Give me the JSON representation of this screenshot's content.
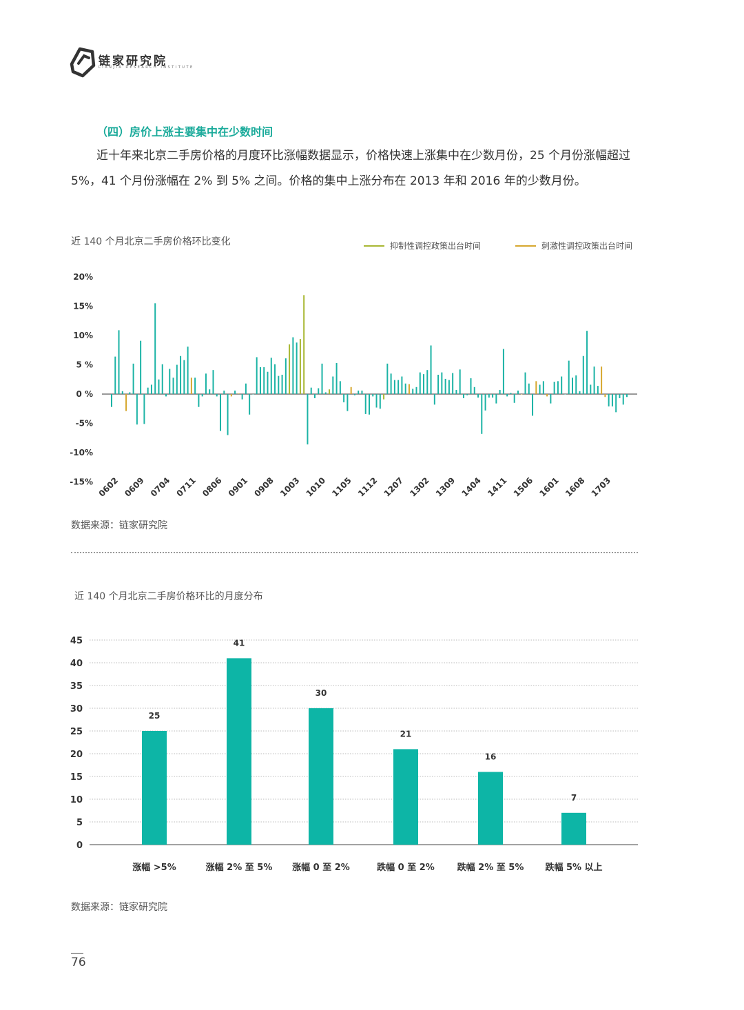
{
  "brand": {
    "name": "链家研究院",
    "subtitle": "LIANJIA RESEARCH INSTITUTE",
    "logo_icon": "lianjia-logo-icon"
  },
  "section": {
    "title": "（四）房价上涨主要集中在少数时间",
    "paragraph": "近十年来北京二手房价格的月度环比涨幅数据显示，价格快速上涨集中在少数月份，25 个月份涨幅超过 5%，41 个月份涨幅在 2% 到 5% 之间。价格的集中上涨分布在 2013 年和 2016 年的少数月份。"
  },
  "colors": {
    "teal": "#1bb3a5",
    "green_policy": "#a8b732",
    "orange_policy": "#d6a72e",
    "bar2": "#0db5a6"
  },
  "chart1": {
    "title": "近 140 个月北京二手房价格环比变化",
    "legend": [
      {
        "label": "抑制性调控政策出台时间",
        "color": "#a8b732"
      },
      {
        "label": "刺激性调控政策出台时间",
        "color": "#d6a72e"
      }
    ],
    "source": "数据来源：链家研究院"
  },
  "chart2": {
    "title": "近 140 个月北京二手房价格环比的月度分布",
    "source": "数据来源：链家研究院"
  },
  "chart_data": [
    {
      "type": "bar",
      "title": "近 140 个月北京二手房价格环比变化",
      "ylim": [
        -15,
        20
      ],
      "yticks": [
        20,
        15,
        10,
        5,
        0,
        -5,
        -10,
        -15
      ],
      "ytick_labels": [
        "20%",
        "15%",
        "10%",
        "5 %",
        "0 %",
        "-5%",
        "-10%",
        "-15%"
      ],
      "xtick_labels": [
        "0602",
        "0609",
        "0704",
        "0711",
        "0806",
        "0901",
        "0908",
        "1003",
        "1010",
        "1105",
        "1112",
        "1207",
        "1302",
        "1309",
        "1404",
        "1411",
        "1506",
        "1601",
        "1608",
        "1703"
      ],
      "legend_position": "top-right",
      "series_colors": {
        "normal": "#1bb3a5",
        "restrict": "#a8b732",
        "stimulate": "#d6a72e"
      },
      "values": [
        -2.2,
        6.4,
        10.9,
        0.5,
        -2.9,
        0.3,
        5.2,
        -5.2,
        9.1,
        -5.1,
        1.1,
        1.6,
        15.5,
        2.5,
        5.1,
        -0.4,
        4.3,
        2.8,
        5.0,
        6.5,
        5.8,
        8.1,
        2.8,
        2.8,
        -2.2,
        -0.4,
        3.5,
        0.8,
        4.1,
        -0.4,
        -6.3,
        0.6,
        -7.0,
        -0.4,
        0.6,
        0.1,
        -0.9,
        1.8,
        -3.5,
        0,
        6.3,
        4.6,
        4.6,
        3.8,
        6.2,
        5.1,
        3.1,
        3.3,
        6.1,
        8.5,
        9.7,
        8.8,
        9.4,
        16.9,
        -8.6,
        1.1,
        -0.7,
        1.0,
        5.2,
        0.3,
        0.8,
        3.0,
        5.3,
        2.2,
        -1.4,
        -2.9,
        1.2,
        -0.2,
        0.6,
        0.6,
        -3.4,
        -3.5,
        -0.4,
        -2.3,
        -2.5,
        -0.9,
        5.2,
        3.5,
        2.4,
        2.4,
        3.0,
        1.8,
        1.7,
        0.9,
        1.2,
        3.7,
        3.4,
        4.1,
        8.3,
        -1.8,
        3.3,
        3.7,
        2.6,
        2.4,
        3.6,
        0.7,
        4.2,
        -0.7,
        -0.2,
        2.7,
        1.2,
        -0.6,
        -6.8,
        -2.8,
        -0.6,
        -0.6,
        -1.6,
        0.7,
        7.7,
        -0.4,
        0.2,
        -1.5,
        0.6,
        0,
        3.7,
        1.8,
        -3.7,
        2.2,
        1.6,
        2.2,
        -0.4,
        -1.6,
        2.1,
        2.2,
        3.0,
        0,
        5.7,
        2.8,
        3.2,
        0.5,
        6.5,
        10.8,
        1.6,
        4.7,
        1.4,
        4.7,
        -0.5,
        -2.1,
        -2.1,
        -3.1,
        -0.7,
        -1.8,
        -0.5
      ],
      "colors_index": {
        "restrict": [
          49,
          52,
          53,
          60,
          75
        ],
        "stimulate": [
          4,
          22,
          33,
          35,
          66,
          82,
          113,
          117,
          120,
          135,
          136
        ]
      },
      "xlabel": "",
      "ylabel": ""
    },
    {
      "type": "bar",
      "title": "近 140 个月北京二手房价格环比的月度分布",
      "categories": [
        "涨幅 >5%",
        "涨幅 2% 至 5%",
        "涨幅 0 至 2%",
        "跌幅 0 至 2%",
        "跌幅 2% 至 5%",
        "跌幅 5% 以上"
      ],
      "values": [
        25,
        41,
        30,
        21,
        16,
        7
      ],
      "ylim": [
        0,
        45
      ],
      "yticks": [
        0,
        5,
        10,
        15,
        20,
        25,
        30,
        35,
        40,
        45
      ],
      "grid": true,
      "xlabel": "",
      "ylabel": ""
    }
  ]
}
